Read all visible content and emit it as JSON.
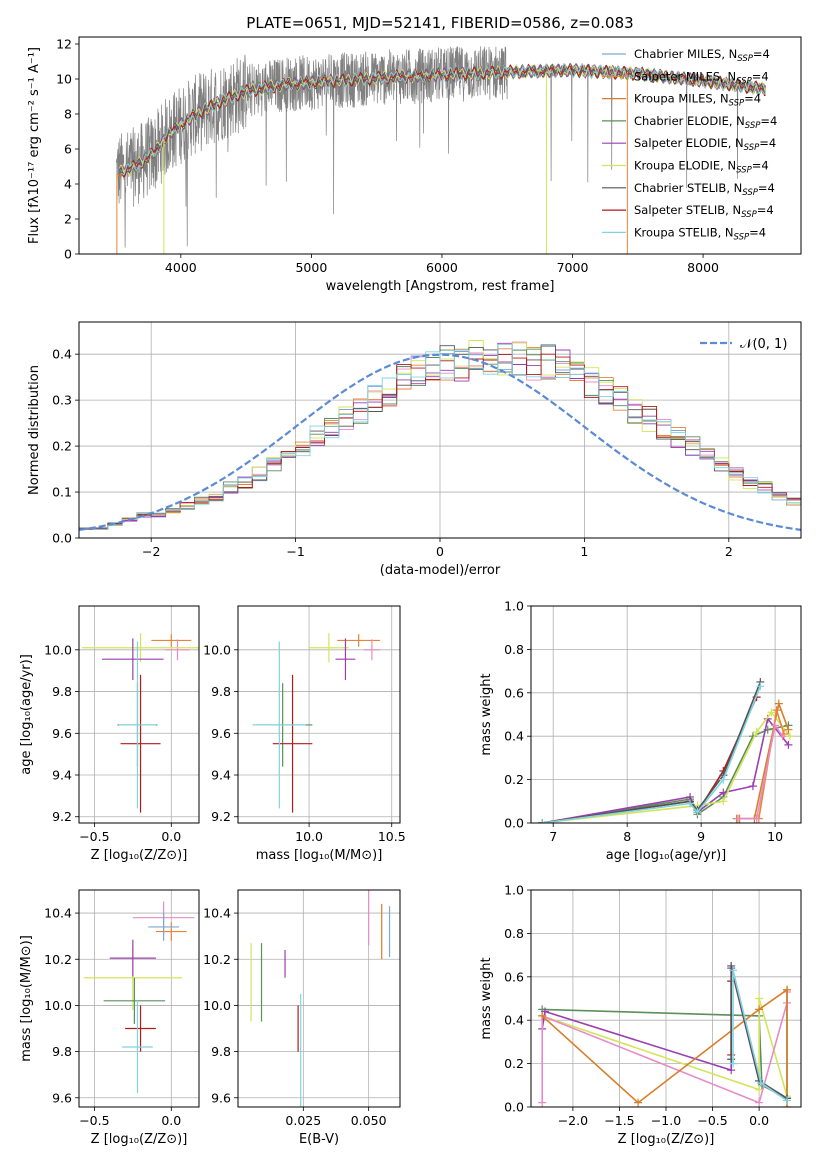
{
  "chart_data": [
    {
      "type": "line",
      "title": "PLATE=0651, MJD=52141, FIBERID=0586, z=0.083",
      "xlabel": "wavelength [Angstrom, rest frame]",
      "ylabel": "Flux [fλ10⁻¹⁷ erg cm⁻² s⁻¹ A⁻¹]",
      "xlim": [
        3220,
        8750
      ],
      "ylim": [
        0,
        12.4
      ],
      "xticks": [
        4000,
        5000,
        6000,
        7000,
        8000
      ],
      "yticks": [
        0,
        2,
        4,
        6,
        8,
        10,
        12
      ],
      "grid": false,
      "legend_position": "upper-right",
      "series": [
        {
          "name": "Chabrier MILES, N",
          "sub": "SSP",
          "tail": "=4",
          "color": "#7fa7d6"
        },
        {
          "name": "Salpeter MILES, N",
          "sub": "SSP",
          "tail": "=4",
          "color": "#e8833a"
        },
        {
          "name": "Kroupa MILES, N",
          "sub": "SSP",
          "tail": "=4",
          "color": "#d67f2a"
        },
        {
          "name": "Chabrier ELODIE, N",
          "sub": "SSP",
          "tail": "=4",
          "color": "#5b8f5b"
        },
        {
          "name": "Salpeter ELODIE, N",
          "sub": "SSP",
          "tail": "=4",
          "color": "#9b3fb0"
        },
        {
          "name": "Kroupa ELODIE, N",
          "sub": "SSP",
          "tail": "=4",
          "color": "#d4e45a"
        },
        {
          "name": "Chabrier STELIB, N",
          "sub": "SSP",
          "tail": "=4",
          "color": "#555555"
        },
        {
          "name": "Salpeter STELIB, N",
          "sub": "SSP",
          "tail": "=4",
          "color": "#b01c1c"
        },
        {
          "name": "Kroupa STELIB, N",
          "sub": "SSP",
          "tail": "=4",
          "color": "#7fd4e0"
        }
      ],
      "data_color": "#808080",
      "continuum": [
        [
          3500,
          4.6
        ],
        [
          3650,
          5.0
        ],
        [
          3800,
          5.8
        ],
        [
          3900,
          6.8
        ],
        [
          4000,
          7.4
        ],
        [
          4100,
          7.9
        ],
        [
          4300,
          8.7
        ],
        [
          4500,
          9.3
        ],
        [
          4800,
          9.7
        ],
        [
          5200,
          9.9
        ],
        [
          5600,
          10.1
        ],
        [
          6000,
          10.25
        ],
        [
          6500,
          10.4
        ],
        [
          7000,
          10.5
        ],
        [
          7500,
          10.3
        ],
        [
          8000,
          9.9
        ],
        [
          8500,
          9.4
        ]
      ]
    },
    {
      "type": "histogram",
      "xlabel": "(data-model)/error",
      "ylabel": "Normed distribution",
      "xlim": [
        -2.5,
        2.5
      ],
      "ylim": [
        0,
        0.47
      ],
      "xticks": [
        -2,
        -1,
        0,
        1,
        2
      ],
      "yticks": [
        0.0,
        0.1,
        0.2,
        0.3,
        0.4
      ],
      "grid": true,
      "legend": "𝒩(0, 1)",
      "legend_position": "upper-right",
      "gaussian_color": "#5b8bd6",
      "bin_width": 0.1,
      "bin_start": -2.5,
      "reference_values": [
        0.02,
        0.02,
        0.03,
        0.04,
        0.05,
        0.05,
        0.06,
        0.07,
        0.08,
        0.09,
        0.11,
        0.12,
        0.14,
        0.16,
        0.18,
        0.2,
        0.22,
        0.24,
        0.26,
        0.28,
        0.3,
        0.32,
        0.34,
        0.36,
        0.37,
        0.38,
        0.38,
        0.39,
        0.4,
        0.39,
        0.39,
        0.38,
        0.38,
        0.37,
        0.35,
        0.34,
        0.32,
        0.3,
        0.28,
        0.26,
        0.24,
        0.22,
        0.2,
        0.18,
        0.16,
        0.14,
        0.12,
        0.11,
        0.09,
        0.08,
        0.07,
        0.06,
        0.05,
        0.05,
        0.04,
        0.03,
        0.03,
        0.03,
        0.02,
        0.02
      ]
    },
    {
      "type": "errorbar",
      "xlabel": "Z [log₁₀(Z/Z⊙)]",
      "ylabel": "age  [log₁₀(age/yr)]",
      "xlim": [
        -0.6,
        0.18
      ],
      "ylim": [
        9.17,
        10.21
      ],
      "xticks": [
        -0.5,
        0.0
      ],
      "yticks": [
        9.2,
        9.4,
        9.6,
        9.8,
        10.0
      ],
      "grid": true,
      "points": [
        {
          "x": 0.0,
          "xerr": 0.13,
          "y": 10.045,
          "yerr": 0.03,
          "color": "#e8833a"
        },
        {
          "x": 0.04,
          "xerr": 0.08,
          "y": 10.0,
          "yerr": 0.05,
          "color": "#e88ac8"
        },
        {
          "x": -0.2,
          "xerr": 0.38,
          "y": 10.01,
          "yerr": 0.07,
          "color": "#d4e45a"
        },
        {
          "x": -0.25,
          "xerr": 0.2,
          "y": 9.955,
          "yerr": 0.1,
          "color": "#9b3fb0"
        },
        {
          "x": -0.22,
          "xerr": 0.13,
          "y": 9.64,
          "yerr": 0.2,
          "color": "#5b8f5b"
        },
        {
          "x": -0.2,
          "xerr": 0.13,
          "y": 9.55,
          "yerr": 0.33,
          "color": "#b01c1c"
        },
        {
          "x": -0.22,
          "xerr": 0.12,
          "y": 9.64,
          "yerr": 0.4,
          "color": "#7fd4e0"
        }
      ]
    },
    {
      "type": "errorbar",
      "xlabel": "mass [log₁₀(M/M⊙)]",
      "xlim": [
        9.57,
        10.55
      ],
      "ylim": [
        9.17,
        10.21
      ],
      "xticks": [
        10.0,
        10.5
      ],
      "yticks": [
        9.2,
        9.4,
        9.6,
        9.8,
        10.0
      ],
      "grid": true,
      "points": [
        {
          "x": 10.3,
          "xerr": 0.13,
          "y": 10.045,
          "yerr": 0.03,
          "color": "#e8833a"
        },
        {
          "x": 10.38,
          "xerr": 0.05,
          "y": 10.0,
          "yerr": 0.05,
          "color": "#e88ac8"
        },
        {
          "x": 10.12,
          "xerr": 0.12,
          "y": 10.01,
          "yerr": 0.07,
          "color": "#d4e45a"
        },
        {
          "x": 10.22,
          "xerr": 0.06,
          "y": 9.955,
          "yerr": 0.1,
          "color": "#9b3fb0"
        },
        {
          "x": 9.84,
          "xerr": 0.18,
          "y": 9.64,
          "yerr": 0.2,
          "color": "#5b8f5b"
        },
        {
          "x": 9.9,
          "xerr": 0.12,
          "y": 9.55,
          "yerr": 0.33,
          "color": "#b01c1c"
        },
        {
          "x": 9.82,
          "xerr": 0.16,
          "y": 9.64,
          "yerr": 0.4,
          "color": "#7fd4e0"
        }
      ]
    },
    {
      "type": "line",
      "xlabel": "age  [log₁₀(age/yr)]",
      "ylabel": "mass weight",
      "xlim": [
        6.7,
        10.35
      ],
      "ylim": [
        0,
        1.0
      ],
      "xticks": [
        7,
        8,
        9,
        10
      ],
      "yticks": [
        0.0,
        0.2,
        0.4,
        0.6,
        0.8,
        1.0
      ],
      "grid": true,
      "series": [
        {
          "color": "#5b8f5b",
          "x": [
            6.85,
            8.85,
            8.95,
            9.3,
            9.7,
            9.9,
            10.18
          ],
          "y": [
            0.0,
            0.11,
            0.04,
            0.12,
            0.4,
            0.43,
            0.45
          ]
        },
        {
          "color": "#9b3fb0",
          "x": [
            6.85,
            8.85,
            8.95,
            9.3,
            9.7,
            9.9,
            10.18
          ],
          "y": [
            0.0,
            0.12,
            0.05,
            0.14,
            0.17,
            0.48,
            0.36
          ]
        },
        {
          "color": "#d4e45a",
          "x": [
            6.85,
            8.95,
            9.3,
            9.75,
            9.95,
            10.2
          ],
          "y": [
            0.0,
            0.08,
            0.1,
            0.42,
            0.51,
            0.4
          ]
        },
        {
          "color": "#b01c1c",
          "x": [
            6.85,
            8.85,
            8.95,
            9.3,
            9.75
          ],
          "y": [
            0.0,
            0.1,
            0.05,
            0.24,
            0.58
          ]
        },
        {
          "color": "#555555",
          "x": [
            6.85,
            8.85,
            8.95,
            9.3,
            9.8
          ],
          "y": [
            0.0,
            0.1,
            0.06,
            0.22,
            0.65
          ]
        },
        {
          "color": "#7fd4e0",
          "x": [
            6.85,
            8.85,
            8.95,
            9.3,
            9.8
          ],
          "y": [
            0.0,
            0.09,
            0.05,
            0.2,
            0.63
          ]
        },
        {
          "color": "#d67f2a",
          "x": [
            9.48,
            9.72,
            10.05,
            10.18
          ],
          "y": [
            0.02,
            0.02,
            0.55,
            0.43
          ]
        },
        {
          "color": "#e8833a",
          "x": [
            9.52,
            9.78,
            10.02,
            10.12
          ],
          "y": [
            0.02,
            0.02,
            0.52,
            0.41
          ]
        },
        {
          "color": "#e88ac8",
          "x": [
            9.5,
            9.75,
            10.0,
            10.1
          ],
          "y": [
            0.02,
            0.02,
            0.45,
            0.4
          ]
        }
      ]
    },
    {
      "type": "errorbar",
      "xlabel": "Z [log₁₀(Z/Z⊙)]",
      "ylabel": "mass [log₁₀(M/M⊙)]",
      "xlim": [
        -0.6,
        0.18
      ],
      "ylim": [
        9.56,
        10.5
      ],
      "xticks": [
        -0.5,
        0.0
      ],
      "yticks": [
        9.6,
        9.8,
        10.0,
        10.2,
        10.4
      ],
      "grid": true,
      "points": [
        {
          "x": 0.0,
          "xerr": 0.1,
          "y": 10.32,
          "yerr": 0.04,
          "color": "#e8833a"
        },
        {
          "x": -0.05,
          "xerr": 0.2,
          "y": 10.38,
          "yerr": 0.07,
          "color": "#e88ac8"
        },
        {
          "x": -0.05,
          "xerr": 0.1,
          "y": 10.34,
          "yerr": 0.06,
          "color": "#7fa7d6"
        },
        {
          "x": -0.25,
          "xerr": 0.32,
          "y": 10.12,
          "yerr": 0.14,
          "color": "#d4e45a"
        },
        {
          "x": -0.25,
          "xerr": 0.15,
          "y": 10.205,
          "yerr": 0.08,
          "color": "#9b3fb0"
        },
        {
          "x": -0.24,
          "xerr": 0.2,
          "y": 10.02,
          "yerr": 0.1,
          "color": "#5b8f5b"
        },
        {
          "x": -0.2,
          "xerr": 0.1,
          "y": 9.9,
          "yerr": 0.1,
          "color": "#b01c1c"
        },
        {
          "x": -0.22,
          "xerr": 0.1,
          "y": 9.82,
          "yerr": 0.2,
          "color": "#7fd4e0"
        }
      ]
    },
    {
      "type": "errorbar",
      "xlabel": "E(B-V)",
      "xlim": [
        0.0,
        0.062
      ],
      "ylim": [
        9.56,
        10.5
      ],
      "xticks": [
        0.025,
        0.05
      ],
      "yticks": [
        9.6,
        9.8,
        10.0,
        10.2,
        10.4
      ],
      "grid": true,
      "points": [
        {
          "x": 0.005,
          "y": 10.1,
          "yerr": 0.17,
          "color": "#d4e45a"
        },
        {
          "x": 0.009,
          "y": 10.1,
          "yerr": 0.17,
          "color": "#5b8f5b"
        },
        {
          "x": 0.018,
          "y": 10.18,
          "yerr": 0.06,
          "color": "#9b3fb0"
        },
        {
          "x": 0.023,
          "y": 9.9,
          "yerr": 0.1,
          "color": "#b01c1c"
        },
        {
          "x": 0.024,
          "y": 9.8,
          "yerr": 0.25,
          "color": "#7fd4e0"
        },
        {
          "x": 0.05,
          "y": 10.38,
          "yerr": 0.12,
          "color": "#e88ac8"
        },
        {
          "x": 0.055,
          "y": 10.32,
          "yerr": 0.12,
          "color": "#d67f2a"
        },
        {
          "x": 0.058,
          "y": 10.32,
          "yerr": 0.11,
          "color": "#7fa7d6"
        }
      ]
    },
    {
      "type": "line",
      "xlabel": "Z [log₁₀(Z/Z⊙)]",
      "ylabel": "mass weight",
      "xlim": [
        -2.45,
        0.45
      ],
      "ylim": [
        0,
        1.0
      ],
      "xticks": [
        -2.0,
        -1.5,
        -1.0,
        -0.5,
        0.0
      ],
      "yticks": [
        0.0,
        0.2,
        0.4,
        0.6,
        0.8,
        1.0
      ],
      "grid": true,
      "series": [
        {
          "color": "#5b8f5b",
          "x": [
            -2.33,
            0.0,
            0.03,
            0.3,
            0.3
          ],
          "y": [
            0.45,
            0.42,
            0.1,
            0.04,
            0.54
          ]
        },
        {
          "color": "#9b3fb0",
          "x": [
            -2.33,
            -2.3,
            -0.3,
            -0.3,
            0.0,
            0.3
          ],
          "y": [
            0.36,
            0.44,
            0.17,
            0.64,
            0.12,
            0.04
          ]
        },
        {
          "color": "#d4e45a",
          "x": [
            -2.33,
            0.0,
            0.0,
            0.3
          ],
          "y": [
            0.42,
            0.08,
            0.5,
            0.05
          ]
        },
        {
          "color": "#e88ac8",
          "x": [
            -2.33,
            -2.33,
            0.0,
            0.3,
            0.3
          ],
          "y": [
            0.02,
            0.42,
            0.02,
            0.48,
            0.53
          ]
        },
        {
          "color": "#d67f2a",
          "x": [
            -2.33,
            -1.3,
            0.0,
            0.3,
            0.3
          ],
          "y": [
            0.42,
            0.02,
            0.45,
            0.54,
            0.0
          ]
        },
        {
          "color": "#b01c1c",
          "x": [
            -0.3,
            -0.3
          ],
          "y": [
            0.24,
            0.58
          ]
        },
        {
          "color": "#555555",
          "x": [
            -0.3,
            -0.3,
            0.0,
            0.3
          ],
          "y": [
            0.22,
            0.65,
            0.12,
            0.04
          ]
        },
        {
          "color": "#7fd4e0",
          "x": [
            -0.28,
            -0.28,
            0.02,
            0.3
          ],
          "y": [
            0.2,
            0.63,
            0.11,
            0.03
          ]
        }
      ]
    }
  ]
}
